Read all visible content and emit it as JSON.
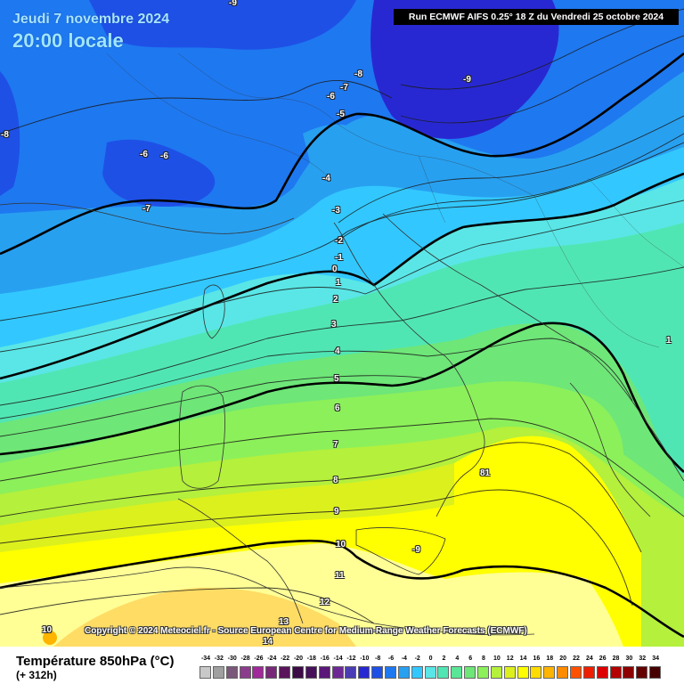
{
  "header": {
    "date": "Jeudi 7 novembre 2024",
    "hour": "20:00 locale",
    "run": "Run ECMWF AIFS 0.25° 18 Z du Vendredi 25 octobre 2024"
  },
  "copyright": "Copyright © 2024 Meteociel.fr - Source European Centre for Medium-Range Weather Forecasts (ECMWF)",
  "legend": {
    "title": "Température 850hPa (°C)",
    "subtitle": "(+ 312h)",
    "ticks": [
      "-34",
      "-32",
      "-30",
      "-28",
      "-26",
      "-24",
      "-22",
      "-20",
      "-18",
      "-16",
      "-14",
      "-12",
      "-10",
      "-8",
      "-6",
      "-4",
      "-2",
      "0",
      "2",
      "4",
      "6",
      "8",
      "10",
      "12",
      "14",
      "16",
      "18",
      "20",
      "22",
      "24",
      "26",
      "28",
      "30",
      "32",
      "34"
    ],
    "colors": [
      "#c8c8c8",
      "#a0a0a0",
      "#7a587a",
      "#8c3c8c",
      "#a0289a",
      "#782878",
      "#5a145a",
      "#3c0a46",
      "#46105a",
      "#5a1878",
      "#6e2896",
      "#4a3cb4",
      "#2828d2",
      "#1e50e6",
      "#1e78f0",
      "#28a0f0",
      "#32c8ff",
      "#5ae6e6",
      "#50e6b4",
      "#5ae696",
      "#6ee678",
      "#8cf05a",
      "#b4f03c",
      "#dcf01e",
      "#ffff00",
      "#ffdc00",
      "#ffb400",
      "#ff8c00",
      "#ff5000",
      "#f01e00",
      "#dc0000",
      "#b40000",
      "#8c0000",
      "#640000",
      "#460000"
    ]
  },
  "map_labels": [
    {
      "text": "-9"
    },
    {
      "text": "-8"
    },
    {
      "text": "-7"
    },
    {
      "text": "-6"
    },
    {
      "text": "-9"
    },
    {
      "text": "-5"
    },
    {
      "text": "-8"
    },
    {
      "text": "-6"
    },
    {
      "text": "-6"
    },
    {
      "text": "-4"
    },
    {
      "text": "-7"
    },
    {
      "text": "-3"
    },
    {
      "text": "-2"
    },
    {
      "text": "-1"
    },
    {
      "text": "0"
    },
    {
      "text": "1"
    },
    {
      "text": "2"
    },
    {
      "text": "3"
    },
    {
      "text": "4"
    },
    {
      "text": "5"
    },
    {
      "text": "6"
    },
    {
      "text": "7"
    },
    {
      "text": "8"
    },
    {
      "text": "9"
    },
    {
      "text": "10"
    },
    {
      "text": "11"
    },
    {
      "text": "12"
    },
    {
      "text": "13"
    },
    {
      "text": "14"
    },
    {
      "text": "10"
    },
    {
      "text": "-9"
    },
    {
      "text": "81"
    },
    {
      "text": "1"
    }
  ]
}
